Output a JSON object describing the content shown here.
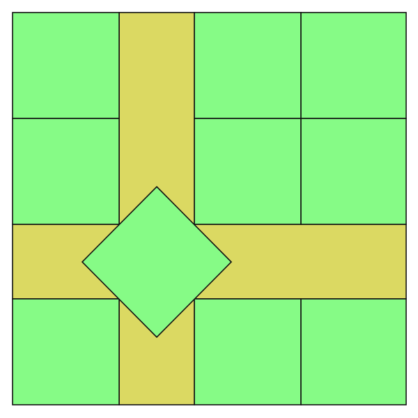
{
  "board": {
    "name": "tile-board",
    "colors": {
      "grass": "#86fb86",
      "road": "#dbd962",
      "outline": "#111111",
      "background": "#ffffff"
    },
    "tiles": [
      {
        "name": "grass-tile-r1-c1",
        "type": "grass"
      },
      {
        "name": "grass-tile-r1-c3",
        "type": "grass"
      },
      {
        "name": "grass-tile-r1-c4",
        "type": "grass"
      },
      {
        "name": "grass-tile-r2-c1",
        "type": "grass"
      },
      {
        "name": "grass-tile-r2-c3",
        "type": "grass"
      },
      {
        "name": "grass-tile-r2-c4",
        "type": "grass"
      },
      {
        "name": "grass-tile-r4-c1",
        "type": "grass"
      },
      {
        "name": "grass-tile-r4-c3",
        "type": "grass"
      },
      {
        "name": "grass-tile-r4-c4",
        "type": "grass"
      }
    ],
    "roads": [
      {
        "name": "vertical-road",
        "orientation": "vertical"
      },
      {
        "name": "horizontal-road",
        "orientation": "horizontal"
      }
    ],
    "center_piece": {
      "name": "diamond-tile",
      "shape": "diamond",
      "type": "grass"
    }
  }
}
